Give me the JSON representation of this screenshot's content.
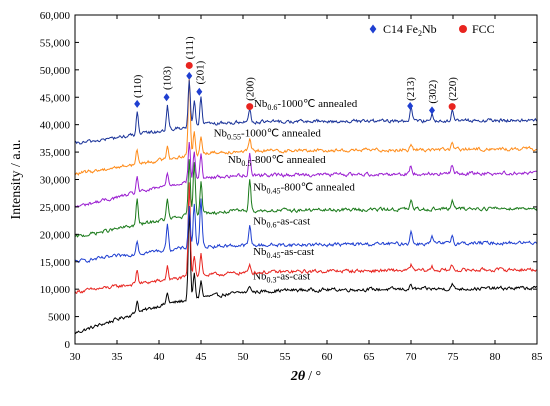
{
  "chart_data": {
    "type": "line",
    "xlabel_symbol": "2θ",
    "xlabel_unit": "/ °",
    "ylabel": "Intensity / a.u.",
    "xlim": [
      30,
      85
    ],
    "ylim": [
      0,
      60000
    ],
    "x_ticks": [
      30,
      35,
      40,
      45,
      50,
      55,
      60,
      65,
      70,
      75,
      80,
      85
    ],
    "y_ticks": [
      0,
      5000,
      10000,
      15000,
      20000,
      25000,
      30000,
      35000,
      40000,
      45000,
      50000,
      55000,
      60000
    ],
    "y_tick_labels": [
      "0",
      "5000",
      "10,000",
      "15,000",
      "20,000",
      "25,000",
      "30,000",
      "35,000",
      "40,000",
      "45,000",
      "50,000",
      "55,000",
      "60,000"
    ],
    "grid": false,
    "legend": {
      "placement": "top-right",
      "entries": [
        {
          "marker": "diamond",
          "color": "#1f3fd1",
          "text": "C14  Fe",
          "sub": "2",
          "text_after": "Nb"
        },
        {
          "marker": "circle",
          "color": "#e8241f",
          "text": "FCC",
          "sub": "",
          "text_after": ""
        }
      ]
    },
    "series": [
      {
        "name_main": "Nb",
        "name_sub": "0.3",
        "name_rest": "-as-cast",
        "color": "#000000",
        "label_x": 51.2,
        "label_y": 11800,
        "baseline": [
          [
            30,
            2000
          ],
          [
            35,
            4500
          ],
          [
            40,
            7000
          ],
          [
            45,
            8500
          ],
          [
            50,
            9400
          ],
          [
            55,
            9800
          ],
          [
            60,
            9900
          ],
          [
            70,
            10000
          ],
          [
            85,
            10200
          ]
        ],
        "peaks": [
          [
            37.4,
            2200
          ],
          [
            41.0,
            2000
          ],
          [
            43.6,
            16000
          ],
          [
            44.2,
            4500
          ],
          [
            45.0,
            3000
          ],
          [
            50.8,
            1200
          ],
          [
            70.0,
            800
          ],
          [
            74.9,
            900
          ]
        ]
      },
      {
        "name_main": "Nb",
        "name_sub": "0.45",
        "name_rest": "-as-cast",
        "color": "#e8241f",
        "label_x": 51.2,
        "label_y": 16200,
        "baseline": [
          [
            30,
            9500
          ],
          [
            40,
            11500
          ],
          [
            45,
            12500
          ],
          [
            50,
            13000
          ],
          [
            60,
            13300
          ],
          [
            85,
            13600
          ]
        ],
        "peaks": [
          [
            37.4,
            2500
          ],
          [
            41.0,
            2500
          ],
          [
            43.6,
            17000
          ],
          [
            44.2,
            4000
          ],
          [
            45.0,
            4000
          ],
          [
            50.8,
            1500
          ],
          [
            70.0,
            1000
          ],
          [
            72.5,
            700
          ],
          [
            74.9,
            900
          ]
        ]
      },
      {
        "name_main": "Nb",
        "name_sub": "0.6",
        "name_rest": "-as-cast",
        "color": "#1f3fd1",
        "label_x": 51.2,
        "label_y": 21800,
        "baseline": [
          [
            30,
            15000
          ],
          [
            40,
            17000
          ],
          [
            45,
            17800
          ],
          [
            50,
            18000
          ],
          [
            85,
            18500
          ]
        ],
        "peaks": [
          [
            37.4,
            2500
          ],
          [
            41.0,
            5000
          ],
          [
            43.6,
            7500
          ],
          [
            44.2,
            8000
          ],
          [
            45.0,
            8500
          ],
          [
            50.8,
            3500
          ],
          [
            70.0,
            2500
          ],
          [
            72.5,
            1200
          ],
          [
            74.9,
            1500
          ]
        ]
      },
      {
        "name_main": "Nb",
        "name_sub": "0.45",
        "name_rest": "-800℃ annealed",
        "color": "#1a7a1a",
        "label_x": 51.2,
        "label_y": 28000,
        "baseline": [
          [
            30,
            19500
          ],
          [
            40,
            22500
          ],
          [
            45,
            23800
          ],
          [
            50,
            24300
          ],
          [
            85,
            24800
          ]
        ],
        "peaks": [
          [
            37.4,
            4500
          ],
          [
            41.0,
            3500
          ],
          [
            43.6,
            10000
          ],
          [
            44.2,
            9500
          ],
          [
            45.0,
            6000
          ],
          [
            50.8,
            6000
          ],
          [
            70.0,
            1500
          ],
          [
            74.9,
            1500
          ]
        ]
      },
      {
        "name_main": "Nb",
        "name_sub": "0.5",
        "name_rest": "-800℃ annealed",
        "color": "#9b1fd1",
        "label_x": 48.2,
        "label_y": 33000,
        "baseline": [
          [
            30,
            25000
          ],
          [
            40,
            28500
          ],
          [
            45,
            30200
          ],
          [
            50,
            30800
          ],
          [
            85,
            31200
          ]
        ],
        "peaks": [
          [
            37.4,
            3000
          ],
          [
            41.0,
            2500
          ],
          [
            43.6,
            7000
          ],
          [
            44.2,
            5000
          ],
          [
            45.0,
            4500
          ],
          [
            50.8,
            4000
          ],
          [
            70.0,
            1500
          ],
          [
            74.9,
            1500
          ]
        ]
      },
      {
        "name_main": "Nb",
        "name_sub": "0.55",
        "name_rest": "-1000℃ annealed",
        "color": "#ff8c1a",
        "label_x": 46.5,
        "label_y": 37800,
        "baseline": [
          [
            30,
            31000
          ],
          [
            40,
            33500
          ],
          [
            45,
            34800
          ],
          [
            50,
            35200
          ],
          [
            85,
            35600
          ]
        ],
        "peaks": [
          [
            37.4,
            2500
          ],
          [
            41.0,
            2500
          ],
          [
            43.6,
            14000
          ],
          [
            44.2,
            4000
          ],
          [
            45.0,
            3000
          ],
          [
            50.8,
            2000
          ],
          [
            70.0,
            1000
          ],
          [
            74.9,
            1200
          ]
        ]
      },
      {
        "name_main": "Nb",
        "name_sub": "0.6",
        "name_rest": "-1000℃ annealed",
        "color": "#1a3399",
        "label_x": 51.3,
        "label_y": 43200,
        "baseline": [
          [
            30,
            36500
          ],
          [
            40,
            38800
          ],
          [
            45,
            40000
          ],
          [
            50,
            40500
          ],
          [
            85,
            40800
          ]
        ],
        "peaks": [
          [
            37.4,
            4000
          ],
          [
            41.0,
            4500
          ],
          [
            43.6,
            8500
          ],
          [
            44.2,
            4500
          ],
          [
            45.0,
            5000
          ],
          [
            50.8,
            2500
          ],
          [
            70.0,
            2500
          ],
          [
            72.5,
            1500
          ],
          [
            74.9,
            2000
          ]
        ]
      }
    ],
    "annotations": [
      {
        "hkl": "(110)",
        "x": 37.4,
        "label_y": 47000,
        "marker_y": 43800,
        "marker": "diamond"
      },
      {
        "hkl": "(103)",
        "x": 40.9,
        "label_y": 48500,
        "marker_y": 45000,
        "marker": "diamond"
      },
      {
        "hkl": "(111)",
        "x": 43.6,
        "label_y": 54000,
        "marker_y": 50800,
        "marker": "circle"
      },
      {
        "hkl": "",
        "x": 43.6,
        "label_y": 0,
        "marker_y": 48900,
        "marker": "diamond"
      },
      {
        "hkl": "(201)",
        "x": 44.8,
        "label_y": 49500,
        "marker_y": 46000,
        "marker": "diamond"
      },
      {
        "hkl": "(200)",
        "x": 50.8,
        "label_y": 46500,
        "marker_y": 43300,
        "marker": "circle"
      },
      {
        "hkl": "(213)",
        "x": 69.9,
        "label_y": 46500,
        "marker_y": 43400,
        "marker": "diamond"
      },
      {
        "hkl": "(302)",
        "x": 72.5,
        "label_y": 46000,
        "marker_y": 42600,
        "marker": "diamond"
      },
      {
        "hkl": "(220)",
        "x": 74.9,
        "label_y": 46500,
        "marker_y": 43300,
        "marker": "circle"
      }
    ]
  }
}
